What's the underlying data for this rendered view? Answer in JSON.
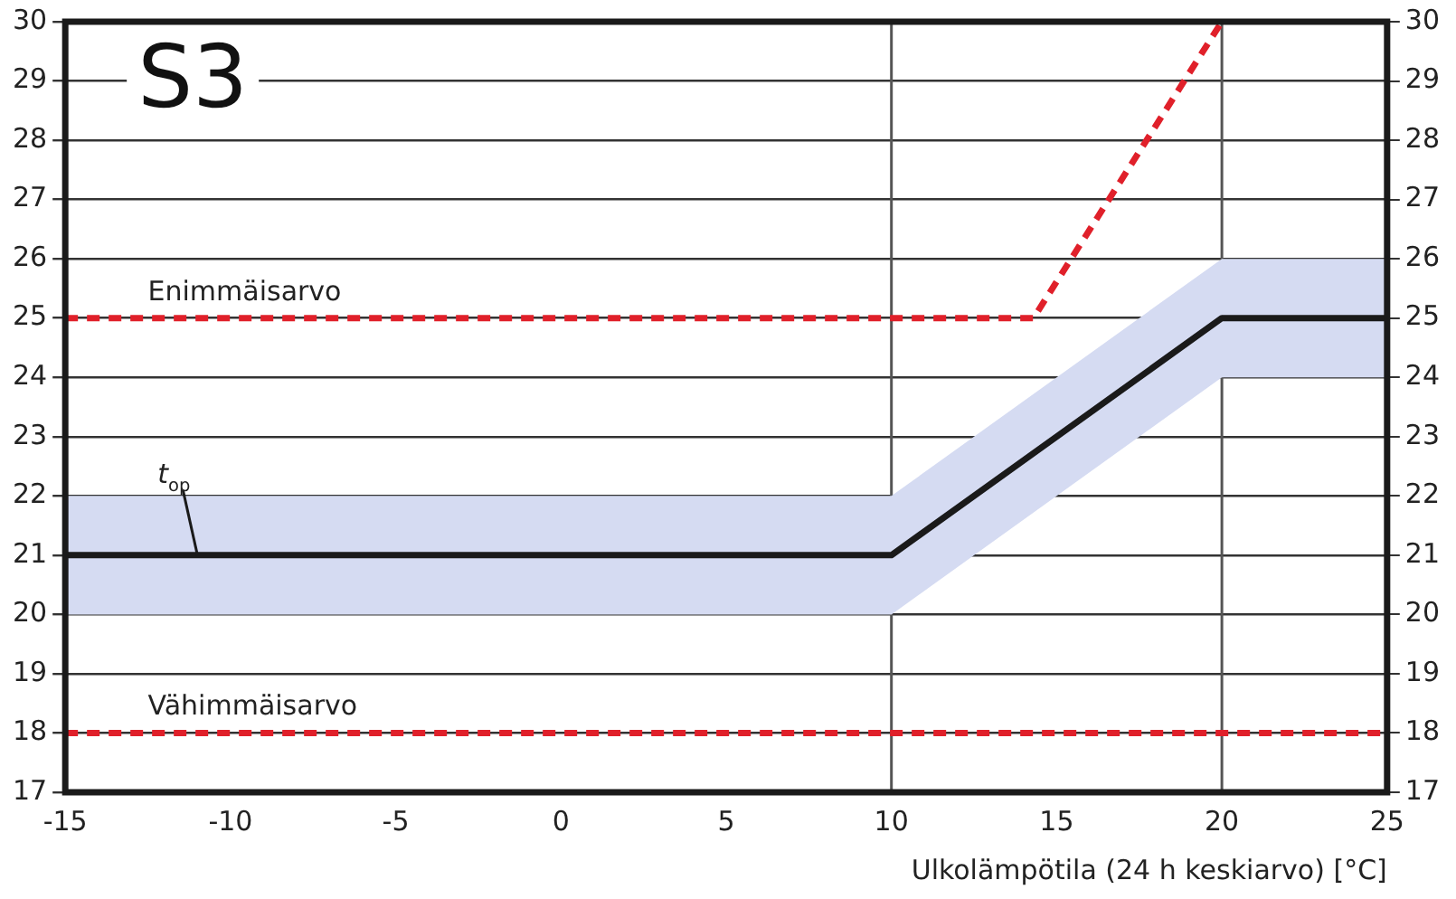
{
  "chart_data": {
    "type": "line",
    "xlabel": "Ulkolämpötila (24 h keskiarvo) [°C]",
    "annotations": [
      "S3"
    ],
    "xlim": [
      -15,
      25
    ],
    "xticks": [
      -15,
      -10,
      -5,
      0,
      5,
      10,
      15,
      20,
      25
    ],
    "ylim": [
      17,
      30
    ],
    "yticks": [
      17,
      18,
      19,
      20,
      21,
      22,
      23,
      24,
      25,
      26,
      27,
      28,
      29,
      30
    ],
    "y2lim": [
      17,
      30
    ],
    "y2ticks": [
      17,
      18,
      19,
      20,
      21,
      22,
      23,
      24,
      25,
      26,
      27,
      28,
      29,
      30
    ],
    "grid": "y",
    "legend": false,
    "marker": "none",
    "ref_lines": [
      {
        "axis": "x",
        "value": 10,
        "color": "#555555"
      },
      {
        "axis": "x",
        "value": 20,
        "color": "#555555"
      }
    ],
    "series": [
      {
        "name": "t$_{op}$",
        "color": "#1a1a1a",
        "x": [
          -15,
          10,
          20,
          25
        ],
        "values": [
          21,
          21,
          25,
          25
        ],
        "lower": [
          20,
          20,
          24,
          24
        ],
        "upper": [
          22,
          22,
          26,
          26
        ],
        "line_style": "solid"
      },
      {
        "name": "Enimmäisarvo",
        "color": "#e0202a",
        "x": [
          -15,
          14.3,
          20
        ],
        "values": [
          25,
          25,
          30
        ],
        "line_style": "dashed"
      },
      {
        "name": "Vähimmäisarvo",
        "color": "#e0202a",
        "x": [
          -15,
          25
        ],
        "values": [
          18,
          18
        ],
        "line_style": "dashed"
      }
    ]
  }
}
